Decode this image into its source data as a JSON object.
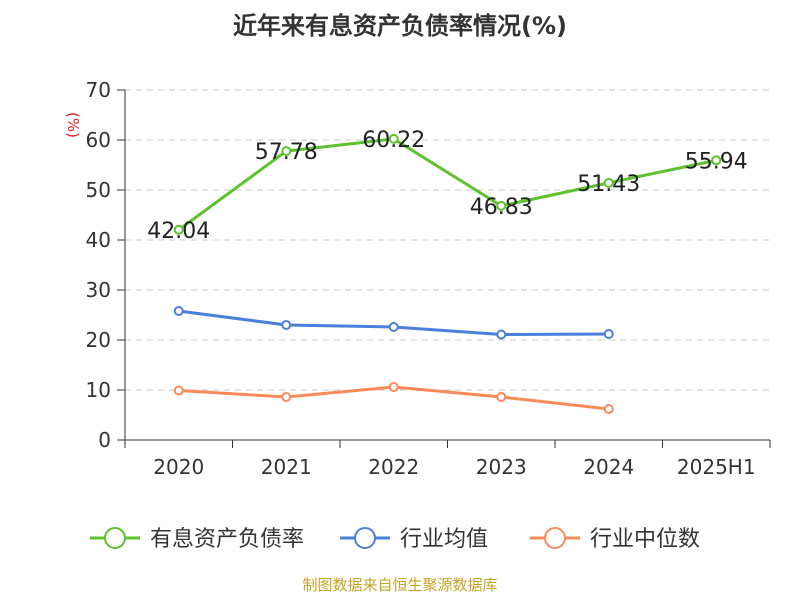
{
  "chart_data": {
    "type": "line",
    "title": "近年来有息资产负债率情况(%)",
    "ylabel": "(%)",
    "xlabel": "",
    "categories": [
      "2020",
      "2021",
      "2022",
      "2023",
      "2024",
      "2025H1"
    ],
    "ylim": [
      0,
      70
    ],
    "yticks": [
      0,
      10,
      20,
      30,
      40,
      50,
      60,
      70
    ],
    "grid": true,
    "legend_position": "bottom",
    "series": [
      {
        "name": "有息资产负债率",
        "color": "#5ec12e",
        "values": [
          42.04,
          57.78,
          60.22,
          46.83,
          51.43,
          55.94
        ],
        "labels": [
          "42.04",
          "57.78",
          "60.22",
          "46.83",
          "51.43",
          "55.94"
        ],
        "show_labels": true
      },
      {
        "name": "行业均值",
        "color": "#4a7fdb",
        "values": [
          25.8,
          23.0,
          22.6,
          21.1,
          21.2,
          null
        ],
        "show_labels": false
      },
      {
        "name": "行业中位数",
        "color": "#f98b5b",
        "values": [
          9.9,
          8.6,
          10.6,
          8.6,
          6.2,
          null
        ],
        "show_labels": false
      }
    ]
  },
  "footer": {
    "source": "制图数据来自恒生聚源数据库",
    "color": "#c9a227"
  }
}
